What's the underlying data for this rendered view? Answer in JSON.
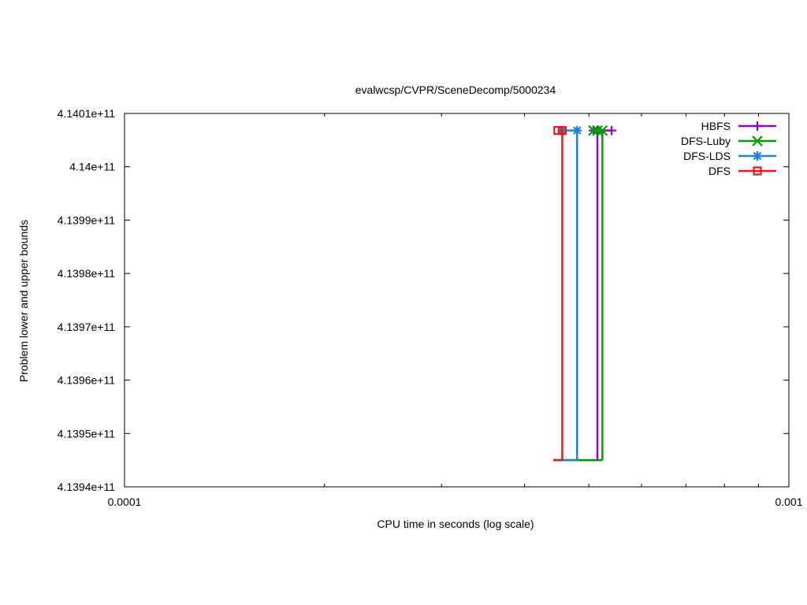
{
  "chart_data": {
    "type": "line",
    "title": "evalwcsp/CVPR/SceneDecomp/5000234",
    "xlabel": "CPU time in seconds (log scale)",
    "ylabel": "Problem lower and upper bounds",
    "xscale": "log",
    "xlim": [
      0.0001,
      0.001
    ],
    "ylim": [
      413940000000,
      414010000000
    ],
    "x_ticks": [
      {
        "value": 0.0001,
        "label": "0.0001"
      },
      {
        "value": 0.001,
        "label": "0.001"
      }
    ],
    "y_ticks": [
      {
        "value": 414010000000,
        "label": "4.1401e+11"
      },
      {
        "value": 414000000000,
        "label": "4.14e+11"
      },
      {
        "value": 413990000000,
        "label": "4.1399e+11"
      },
      {
        "value": 413980000000,
        "label": "4.1398e+11"
      },
      {
        "value": 413970000000,
        "label": "4.1397e+11"
      },
      {
        "value": 413960000000,
        "label": "4.1396e+11"
      },
      {
        "value": 413950000000,
        "label": "4.1395e+11"
      },
      {
        "value": 413940000000,
        "label": "4.1394e+11"
      }
    ],
    "grid": false,
    "legend_position": "top-right",
    "series": [
      {
        "name": "HBFS",
        "color": "#9400d3",
        "marker": "plus",
        "lower_bound": {
          "x": [
            0.000442,
            0.000515
          ],
          "y": [
            413945000000,
            413945000000
          ]
        },
        "upper_bound": {
          "x": [
            0.000508,
            0.000541
          ],
          "y": [
            414006800000,
            414006800000
          ]
        },
        "final_time": 0.000515,
        "upper_markers_x": [
          0.000508,
          0.000515,
          0.000541
        ]
      },
      {
        "name": "DFS-Luby",
        "color": "#009e00",
        "marker": "x",
        "lower_bound": {
          "x": [
            0.000442,
            0.000524
          ],
          "y": [
            413945000000,
            413945000000
          ]
        },
        "upper_bound": {
          "x": [
            0.000508,
            0.000524
          ],
          "y": [
            414006800000,
            414006800000
          ]
        },
        "final_time": 0.000524,
        "upper_markers_x": [
          0.000508,
          0.000515,
          0.000524
        ]
      },
      {
        "name": "DFS-LDS",
        "color": "#1e82dc",
        "marker": "star",
        "lower_bound": {
          "x": [
            0.000442,
            0.00048
          ],
          "y": [
            413945000000,
            413945000000
          ]
        },
        "upper_bound": {
          "x": [
            0.000457,
            0.00048
          ],
          "y": [
            414006800000,
            414006800000
          ]
        },
        "final_time": 0.00048,
        "upper_markers_x": [
          0.000457,
          0.00048
        ]
      },
      {
        "name": "DFS",
        "color": "#e31a1c",
        "marker": "square",
        "lower_bound": {
          "x": [
            0.000442,
            0.000456
          ],
          "y": [
            413945000000,
            413945000000
          ]
        },
        "upper_bound": {
          "x": [
            0.000449,
            0.000456
          ],
          "y": [
            414006800000,
            414006800000
          ]
        },
        "final_time": 0.000456,
        "upper_markers_x": [
          0.000449,
          0.000456
        ]
      }
    ]
  }
}
